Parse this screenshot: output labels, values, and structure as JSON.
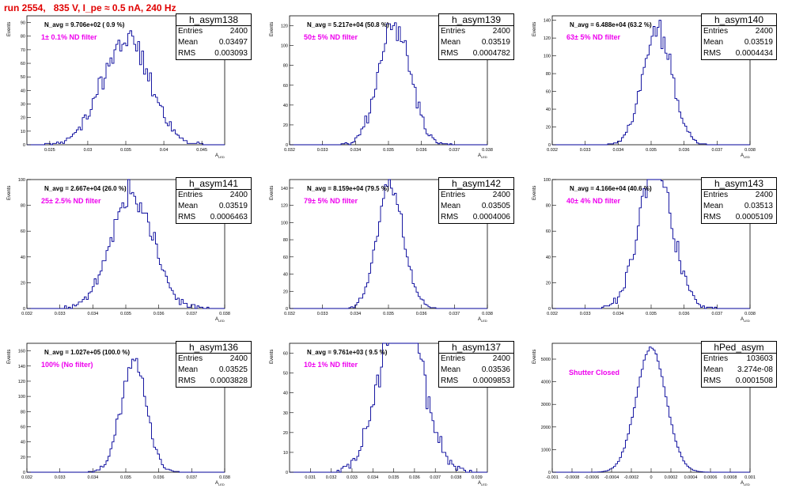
{
  "canvas_title": "run 2554,   835 V, I_pe ≈ 0.5 nA, 240 Hz",
  "ylabel": "Events",
  "xlabel": "A",
  "xlabel_sub": "LED",
  "stat_labels": {
    "entries": "Entries",
    "mean": "Mean",
    "rms": "RMS"
  },
  "colors": {
    "histogram": "#000099",
    "title": "#e00000",
    "filter_text": "#ee00ee"
  },
  "chart_data": [
    {
      "type": "bar",
      "name": "h_asym138",
      "navg": "N_avg = 9.706e+02 ( 0.9 %)",
      "filter": "1± 0.1% ND filter",
      "entries": "2400",
      "mean": "0.03497",
      "rms": "0.003093",
      "xlim": [
        0.022,
        0.048
      ],
      "ylim": [
        0,
        95
      ],
      "xticks": [
        0.025,
        0.03,
        0.035,
        0.04,
        0.045
      ],
      "xtick_labels": [
        "0.025",
        "0.03",
        "0.035",
        "0.04",
        "0.045"
      ],
      "yticks": [
        0,
        10,
        20,
        30,
        40,
        50,
        60,
        70,
        80,
        90
      ],
      "ytick_labels": [
        "0",
        "10",
        "20",
        "30",
        "40",
        "50",
        "60",
        "70",
        "80",
        "90"
      ]
    },
    {
      "type": "bar",
      "name": "h_asym139",
      "navg": "N_avg = 5.217e+04 (50.8 %)",
      "filter": "50± 5% ND filter",
      "entries": "2400",
      "mean": "0.03519",
      "rms": "0.0004782",
      "xlim": [
        0.032,
        0.038
      ],
      "ylim": [
        0,
        130
      ],
      "xticks": [
        0.032,
        0.033,
        0.034,
        0.035,
        0.036,
        0.037,
        0.038
      ],
      "xtick_labels": [
        "0.032",
        "0.033",
        "0.034",
        "0.035",
        "0.036",
        "0.037",
        "0.038"
      ],
      "yticks": [
        0,
        20,
        40,
        60,
        80,
        100,
        120
      ],
      "ytick_labels": [
        "0",
        "20",
        "40",
        "60",
        "80",
        "100",
        "120"
      ]
    },
    {
      "type": "bar",
      "name": "h_asym140",
      "navg": "N_avg = 6.488e+04 (63.2 %)",
      "filter": "63± 5% ND filter",
      "entries": "2400",
      "mean": "0.03519",
      "rms": "0.0004434",
      "xlim": [
        0.032,
        0.038
      ],
      "ylim": [
        0,
        145
      ],
      "xticks": [
        0.032,
        0.033,
        0.034,
        0.035,
        0.036,
        0.037,
        0.038
      ],
      "xtick_labels": [
        "0.032",
        "0.033",
        "0.034",
        "0.035",
        "0.036",
        "0.037",
        "0.038"
      ],
      "yticks": [
        0,
        20,
        40,
        60,
        80,
        100,
        120,
        140
      ],
      "ytick_labels": [
        "0",
        "20",
        "40",
        "60",
        "80",
        "100",
        "120",
        "140"
      ]
    },
    {
      "type": "bar",
      "name": "h_asym141",
      "navg": "N_avg = 2.667e+04 (26.0 %)",
      "filter": "25± 2.5% ND filter",
      "entries": "2400",
      "mean": "0.03519",
      "rms": "0.0006463",
      "xlim": [
        0.032,
        0.038
      ],
      "ylim": [
        0,
        100
      ],
      "xticks": [
        0.032,
        0.033,
        0.034,
        0.035,
        0.036,
        0.037,
        0.038
      ],
      "xtick_labels": [
        "0.032",
        "0.033",
        "0.034",
        "0.035",
        "0.036",
        "0.037",
        "0.038"
      ],
      "yticks": [
        0,
        20,
        40,
        60,
        80,
        100
      ],
      "ytick_labels": [
        "0",
        "20",
        "40",
        "60",
        "80",
        "100"
      ]
    },
    {
      "type": "bar",
      "name": "h_asym142",
      "navg": "N_avg = 8.159e+04 (79.5 %)",
      "filter": "79± 5% ND filter",
      "entries": "2400",
      "mean": "0.03505",
      "rms": "0.0004006",
      "xlim": [
        0.032,
        0.038
      ],
      "ylim": [
        0,
        150
      ],
      "xticks": [
        0.032,
        0.033,
        0.034,
        0.035,
        0.036,
        0.037,
        0.038
      ],
      "xtick_labels": [
        "0.032",
        "0.033",
        "0.034",
        "0.035",
        "0.036",
        "0.037",
        "0.038"
      ],
      "yticks": [
        0,
        20,
        40,
        60,
        80,
        100,
        120,
        140
      ],
      "ytick_labels": [
        "0",
        "20",
        "40",
        "60",
        "80",
        "100",
        "120",
        "140"
      ]
    },
    {
      "type": "bar",
      "name": "h_asym143",
      "navg": "N_avg = 4.166e+04 (40.6 %)",
      "filter": "40± 4% ND filter",
      "entries": "2400",
      "mean": "0.03513",
      "rms": "0.0005109",
      "xlim": [
        0.032,
        0.038
      ],
      "ylim": [
        0,
        100
      ],
      "xticks": [
        0.032,
        0.033,
        0.034,
        0.035,
        0.036,
        0.037,
        0.038
      ],
      "xtick_labels": [
        "0.032",
        "0.033",
        "0.034",
        "0.035",
        "0.036",
        "0.037",
        "0.038"
      ],
      "yticks": [
        0,
        20,
        40,
        60,
        80,
        100
      ],
      "ytick_labels": [
        "0",
        "20",
        "40",
        "60",
        "80",
        "100"
      ]
    },
    {
      "type": "bar",
      "name": "h_asym136",
      "navg": "N_avg = 1.027e+05 (100.0 %)",
      "filter": "100% (No filter)",
      "entries": "2400",
      "mean": "0.03525",
      "rms": "0.0003828",
      "xlim": [
        0.032,
        0.038
      ],
      "ylim": [
        0,
        170
      ],
      "xticks": [
        0.032,
        0.033,
        0.034,
        0.035,
        0.036,
        0.037,
        0.038
      ],
      "xtick_labels": [
        "0.032",
        "0.033",
        "0.034",
        "0.035",
        "0.036",
        "0.037",
        "0.038"
      ],
      "yticks": [
        0,
        20,
        40,
        60,
        80,
        100,
        120,
        140,
        160
      ],
      "ytick_labels": [
        "0",
        "20",
        "40",
        "60",
        "80",
        "100",
        "120",
        "140",
        "160"
      ]
    },
    {
      "type": "bar",
      "name": "h_asym137",
      "navg": "N_avg = 9.761e+03 ( 9.5 %)",
      "filter": "10± 1% ND filter",
      "entries": "2400",
      "mean": "0.03536",
      "rms": "0.0009853",
      "xlim": [
        0.03,
        0.0395
      ],
      "ylim": [
        0,
        65
      ],
      "xticks": [
        0.031,
        0.032,
        0.033,
        0.034,
        0.035,
        0.036,
        0.037,
        0.038,
        0.039
      ],
      "xtick_labels": [
        "0.031",
        "0.032",
        "0.033",
        "0.034",
        "0.035",
        "0.036",
        "0.037",
        "0.038",
        "0.039"
      ],
      "yticks": [
        0,
        10,
        20,
        30,
        40,
        50,
        60
      ],
      "ytick_labels": [
        "0",
        "10",
        "20",
        "30",
        "40",
        "50",
        "60"
      ]
    },
    {
      "type": "bar",
      "name": "hPed_asym",
      "navg": "",
      "filter": "Shutter Closed",
      "entries": "103603",
      "mean": "3.274e-08",
      "rms": "0.0001508",
      "xlim": [
        -0.001,
        0.001
      ],
      "ylim": [
        0,
        5700
      ],
      "xticks": [
        -0.001,
        -0.0008,
        -0.0006,
        -0.0004,
        -0.0002,
        0,
        0.0002,
        0.0004,
        0.0006,
        0.0008,
        0.001
      ],
      "xtick_labels": [
        "-0.001",
        "-0.0008",
        "-0.0006",
        "-0.0004",
        "-0.0002",
        "0",
        "0.0002",
        "0.0004",
        "0.0006",
        "0.0008",
        "0.001"
      ],
      "yticks": [
        0,
        1000,
        2000,
        3000,
        4000,
        5000
      ],
      "ytick_labels": [
        "0",
        "1000",
        "2000",
        "3000",
        "4000",
        "5000"
      ]
    }
  ]
}
